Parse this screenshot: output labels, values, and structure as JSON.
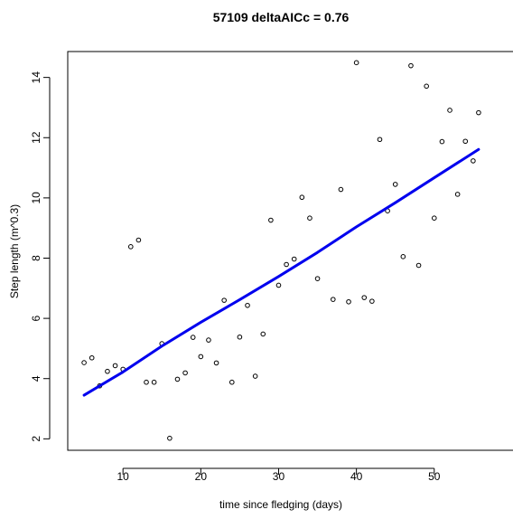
{
  "chart_data": {
    "type": "scatter",
    "title": "57109 deltaAICc =  0.76",
    "xlabel": "time since fledging (days)",
    "ylabel": "Step length (m^0.3)",
    "xlim": [
      2.9,
      57.8
    ],
    "ylim": [
      1.62,
      14.86
    ],
    "xticks": [
      10,
      20,
      30,
      40,
      50
    ],
    "yticks": [
      2,
      4,
      6,
      8,
      10,
      12,
      14
    ],
    "grid": false,
    "points": {
      "x": [
        5,
        6,
        7,
        8,
        9,
        10,
        11,
        12,
        13,
        14,
        15,
        16,
        17,
        18,
        19,
        20,
        21,
        22,
        23,
        24,
        25,
        26,
        27,
        28,
        29,
        30,
        31,
        32,
        33,
        34,
        35,
        37,
        38,
        39,
        40,
        41,
        42,
        43,
        44,
        45,
        46,
        47,
        48,
        49,
        50,
        51,
        52,
        53,
        54,
        55,
        55.7
      ],
      "y": [
        4.53,
        4.69,
        3.76,
        4.24,
        4.43,
        4.31,
        8.38,
        8.6,
        3.88,
        3.88,
        5.16,
        2.02,
        3.98,
        4.19,
        5.37,
        4.73,
        5.28,
        4.52,
        6.6,
        3.88,
        5.38,
        6.43,
        4.08,
        5.48,
        9.26,
        7.1,
        7.79,
        7.97,
        10.02,
        9.33,
        7.32,
        6.63,
        10.28,
        6.55,
        14.49,
        6.69,
        6.57,
        11.94,
        9.57,
        10.45,
        8.05,
        14.39,
        7.76,
        13.71,
        9.33,
        11.87,
        12.91,
        10.12,
        11.88,
        11.23,
        12.83
      ]
    },
    "fit_line": {
      "x": [
        5,
        10,
        15,
        20,
        25,
        30,
        35,
        40,
        45,
        50,
        55.7
      ],
      "y": [
        3.45,
        4.22,
        5.08,
        5.87,
        6.62,
        7.39,
        8.19,
        9.04,
        9.84,
        10.67,
        11.61
      ],
      "color": "#0000ee"
    }
  }
}
